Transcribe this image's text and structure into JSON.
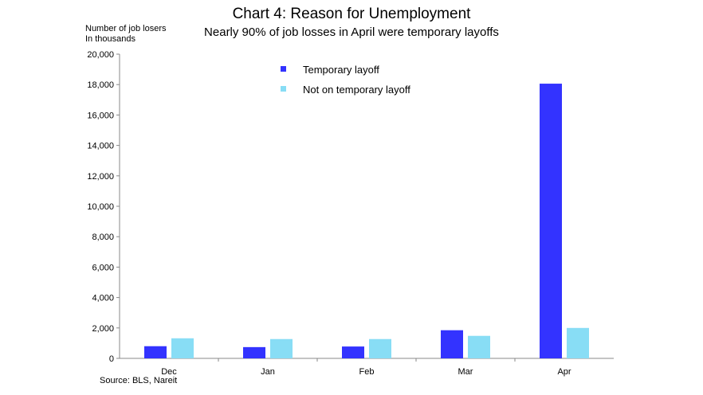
{
  "chart_data": {
    "type": "bar",
    "title": "Chart 4: Reason for Unemployment",
    "subtitle": "Nearly 90% of job losses in April were temporary layoffs",
    "ylabel_lines": [
      "Number of job losers",
      "In thousands"
    ],
    "source": "Source: BLS, Nareit",
    "categories": [
      "Dec",
      "Jan",
      "Feb",
      "Mar",
      "Apr"
    ],
    "series": [
      {
        "name": "Temporary layoff",
        "color": "#3333ff",
        "values": [
          800,
          740,
          780,
          1850,
          18060
        ]
      },
      {
        "name": "Not on temporary layoff",
        "color": "#88ddf5",
        "values": [
          1320,
          1270,
          1270,
          1480,
          2000
        ]
      }
    ],
    "ylim": [
      0,
      20000
    ],
    "yticks": [
      "0",
      "2,000",
      "4,000",
      "6,000",
      "8,000",
      "10,000",
      "12,000",
      "14,000",
      "16,000",
      "18,000",
      "20,000"
    ],
    "grid": false,
    "legend_position": "top-center"
  }
}
